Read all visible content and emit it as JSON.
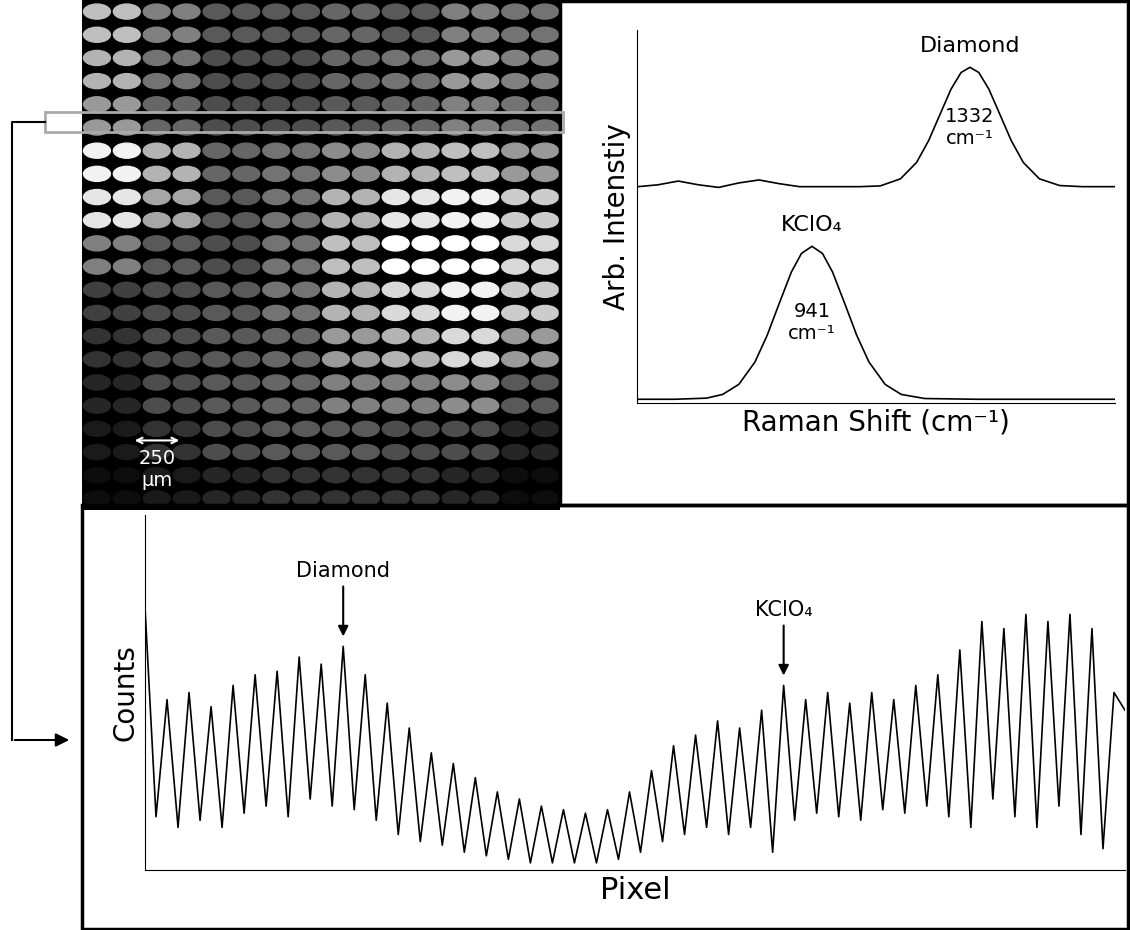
{
  "chart_data": [
    {
      "type": "image",
      "brightness": [
        [
          0.75,
          0.5,
          0.35,
          0.35,
          0.4,
          0.35,
          0.5,
          0.45
        ],
        [
          0.7,
          0.45,
          0.3,
          0.3,
          0.4,
          0.45,
          0.6,
          0.5
        ],
        [
          0.6,
          0.4,
          0.3,
          0.3,
          0.35,
          0.4,
          0.5,
          0.45
        ],
        [
          0.95,
          0.7,
          0.4,
          0.45,
          0.55,
          0.7,
          0.75,
          0.6
        ],
        [
          0.9,
          0.65,
          0.35,
          0.45,
          0.7,
          0.9,
          0.95,
          0.8
        ],
        [
          0.5,
          0.35,
          0.3,
          0.45,
          0.75,
          1.0,
          1.0,
          0.85
        ],
        [
          0.25,
          0.3,
          0.35,
          0.45,
          0.7,
          0.85,
          0.95,
          0.8
        ],
        [
          0.2,
          0.3,
          0.35,
          0.4,
          0.6,
          0.7,
          0.85,
          0.6
        ],
        [
          0.15,
          0.3,
          0.35,
          0.4,
          0.5,
          0.5,
          0.55,
          0.35
        ],
        [
          0.1,
          0.2,
          0.3,
          0.35,
          0.35,
          0.3,
          0.3,
          0.15
        ],
        [
          0.05,
          0.1,
          0.15,
          0.2,
          0.2,
          0.2,
          0.15,
          0.05
        ]
      ],
      "scale_bar": "250\nµm"
    },
    {
      "type": "line",
      "x_label": "Raman Shift (cm⁻¹)",
      "y_label": "Arb. Intenstiy",
      "xlim": [
        508,
        1691
      ],
      "ylim": [
        0,
        1
      ],
      "tick_labels": false,
      "series": [
        {
          "name": "Diamond",
          "color": "#000000",
          "peak": 1332,
          "peak_label": "1332\ncm⁻¹",
          "x": [
            510,
            560,
            610,
            660,
            710,
            760,
            810,
            860,
            910,
            960,
            1010,
            1060,
            1110,
            1160,
            1200,
            1230,
            1260,
            1285,
            1310,
            1332,
            1354,
            1379,
            1404,
            1434,
            1464,
            1504,
            1554,
            1610,
            1690
          ],
          "values": [
            0.58,
            0.585,
            0.595,
            0.585,
            0.578,
            0.59,
            0.598,
            0.588,
            0.58,
            0.58,
            0.58,
            0.58,
            0.582,
            0.601,
            0.645,
            0.704,
            0.779,
            0.841,
            0.886,
            0.9,
            0.886,
            0.841,
            0.779,
            0.704,
            0.645,
            0.601,
            0.583,
            0.58,
            0.58
          ]
        },
        {
          "name": "KClO₄",
          "color": "#000000",
          "peak": 941,
          "peak_label": "941\ncm⁻¹",
          "x": [
            510,
            600,
            680,
            720,
            760,
            800,
            830,
            860,
            890,
            915,
            941,
            967,
            992,
            1022,
            1052,
            1082,
            1122,
            1162,
            1220,
            1350,
            1500,
            1690
          ],
          "values": [
            0.01,
            0.01,
            0.013,
            0.023,
            0.05,
            0.11,
            0.181,
            0.267,
            0.351,
            0.401,
            0.42,
            0.401,
            0.351,
            0.267,
            0.181,
            0.11,
            0.05,
            0.023,
            0.012,
            0.01,
            0.01,
            0.01
          ]
        }
      ]
    },
    {
      "type": "line",
      "x_label": "Pixel",
      "y_label": "Counts",
      "color": "#000000",
      "xlim": [
        0,
        979
      ],
      "ylim": [
        0,
        1
      ],
      "tick_labels": false,
      "x": [
        0,
        11,
        22,
        33,
        44,
        55,
        66,
        77,
        88,
        99,
        110,
        121,
        132,
        143,
        154,
        165,
        176,
        187,
        198,
        209,
        220,
        231,
        242,
        253,
        264,
        275,
        286,
        297,
        308,
        319,
        330,
        341,
        352,
        363,
        374,
        385,
        396,
        407,
        418,
        429,
        440,
        451,
        462,
        473,
        484,
        495,
        506,
        517,
        528,
        539,
        550,
        561,
        572,
        583,
        594,
        605,
        616,
        627,
        638,
        649,
        660,
        671,
        682,
        693,
        704,
        715,
        726,
        737,
        748,
        759,
        770,
        781,
        792,
        803,
        814,
        825,
        836,
        847,
        858,
        869,
        880,
        891,
        902,
        913,
        924,
        935,
        946,
        957,
        968,
        979
      ],
      "values": [
        0.74,
        0.15,
        0.48,
        0.12,
        0.5,
        0.14,
        0.46,
        0.12,
        0.52,
        0.16,
        0.55,
        0.18,
        0.56,
        0.15,
        0.6,
        0.2,
        0.58,
        0.18,
        0.63,
        0.17,
        0.55,
        0.14,
        0.47,
        0.1,
        0.4,
        0.08,
        0.33,
        0.07,
        0.3,
        0.05,
        0.26,
        0.04,
        0.22,
        0.03,
        0.2,
        0.02,
        0.18,
        0.02,
        0.17,
        0.02,
        0.16,
        0.02,
        0.17,
        0.03,
        0.22,
        0.05,
        0.28,
        0.08,
        0.35,
        0.1,
        0.38,
        0.12,
        0.42,
        0.1,
        0.4,
        0.12,
        0.45,
        0.05,
        0.52,
        0.14,
        0.48,
        0.16,
        0.5,
        0.15,
        0.47,
        0.14,
        0.5,
        0.17,
        0.48,
        0.16,
        0.52,
        0.18,
        0.55,
        0.15,
        0.62,
        0.12,
        0.7,
        0.2,
        0.68,
        0.15,
        0.72,
        0.12,
        0.7,
        0.18,
        0.72,
        0.1,
        0.68,
        0.06,
        0.5,
        0.45
      ],
      "annotations": [
        {
          "text": "Diamond",
          "x": 198
        },
        {
          "text": "KClO₄",
          "x": 638
        }
      ]
    }
  ]
}
